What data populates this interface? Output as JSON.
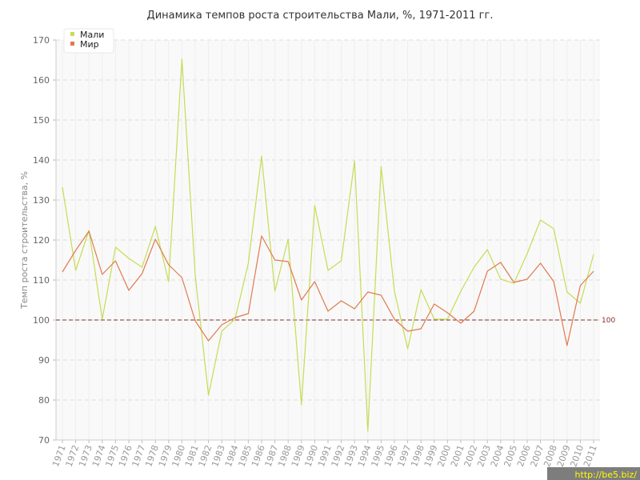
{
  "chart_data": {
    "type": "line",
    "title": "Динамика темпов роста строительства Мали, %, 1971-2011 гг.",
    "ylabel": "Темп роста строительства, %",
    "xlabel": "",
    "ylim": [
      70,
      170
    ],
    "yticks": [
      70,
      80,
      90,
      100,
      110,
      120,
      130,
      140,
      150,
      160,
      170
    ],
    "grid": true,
    "legend_position": "top-left",
    "reference_line": {
      "value": 100,
      "label": "100",
      "color": "#8b2a2a"
    },
    "x": [
      "1971",
      "1972",
      "1973",
      "1974",
      "1975",
      "1976",
      "1977",
      "1978",
      "1979",
      "1980",
      "1981",
      "1982",
      "1983",
      "1984",
      "1985",
      "1986",
      "1987",
      "1988",
      "1989",
      "1990",
      "1991",
      "1992",
      "1993",
      "1994",
      "1995",
      "1996",
      "1997",
      "1998",
      "1999",
      "2000",
      "2001",
      "2002",
      "2003",
      "2004",
      "2005",
      "2006",
      "2007",
      "2008",
      "2009",
      "2010",
      "2011"
    ],
    "series": [
      {
        "name": "Мали",
        "color": "#c6dc55",
        "values": [
          133.2,
          112.4,
          122.4,
          100.2,
          118.2,
          115.4,
          113.2,
          123.4,
          109.6,
          165.2,
          111.2,
          81.2,
          97.2,
          100.2,
          114.2,
          141.0,
          107.2,
          120.2,
          78.8,
          128.6,
          112.4,
          114.8,
          139.8,
          72.2,
          138.4,
          107.2,
          92.8,
          107.6,
          100.2,
          100.2,
          107.2,
          113.2,
          117.6,
          110.2,
          109.2,
          116.6,
          125.0,
          122.8,
          107.0,
          104.2,
          116.4
        ]
      },
      {
        "name": "Мир",
        "color": "#e07a4f",
        "values": [
          112.0,
          117.4,
          122.2,
          111.4,
          114.8,
          107.4,
          111.6,
          120.2,
          113.8,
          110.6,
          99.8,
          94.8,
          98.8,
          100.6,
          101.6,
          121.0,
          115.0,
          114.6,
          105.0,
          109.6,
          102.2,
          104.8,
          102.8,
          107.0,
          106.2,
          100.2,
          97.2,
          97.8,
          104.0,
          101.8,
          99.2,
          102.2,
          112.2,
          114.4,
          109.4,
          110.2,
          114.2,
          109.6,
          93.6,
          108.6,
          112.2
        ]
      }
    ]
  },
  "watermark": "http://be5.biz/"
}
